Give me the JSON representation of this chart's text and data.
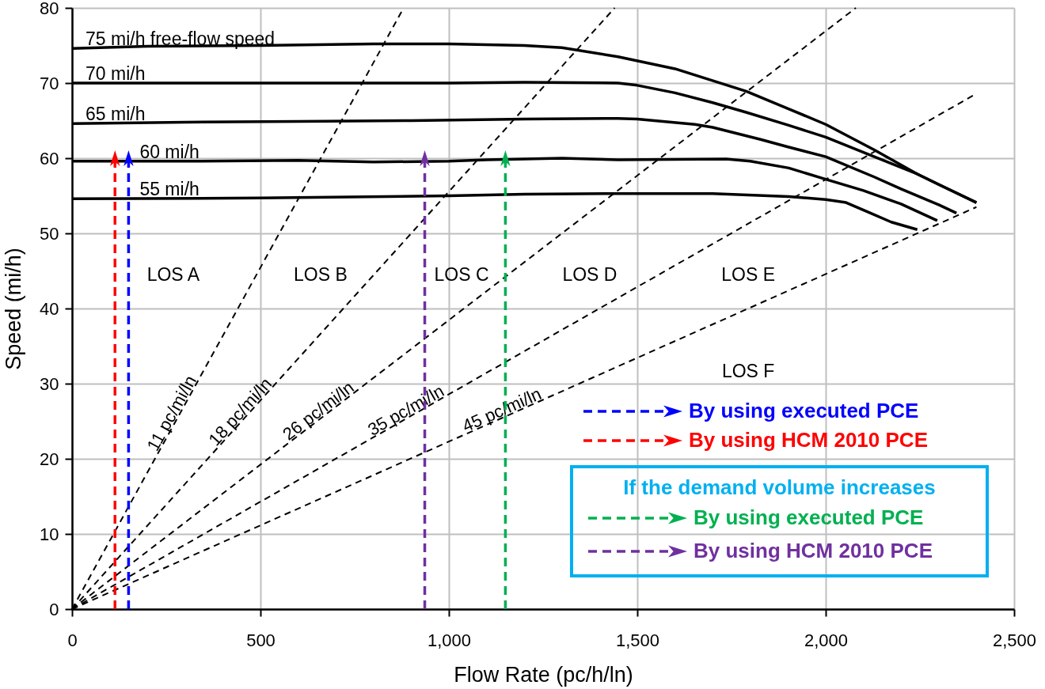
{
  "chart_data": {
    "type": "line",
    "xlabel": "Flow Rate (pc/h/ln)",
    "ylabel": "Speed (mi/h)",
    "xlim": [
      0,
      2500
    ],
    "ylim": [
      0,
      80
    ],
    "xticks": [
      0,
      500,
      {
        "value": 1000,
        "label": "1,000"
      },
      {
        "value": 1500,
        "label": "1,500"
      },
      {
        "value": 2000,
        "label": "2,000"
      },
      {
        "value": 2500,
        "label": "2,500"
      }
    ],
    "yticks": [
      0,
      10,
      20,
      30,
      40,
      50,
      60,
      70,
      80
    ],
    "grid": true,
    "legend": "bottom right",
    "legend_title": "If the demand volume increases",
    "series": [
      {
        "name": "75 mi/h free-flow speed",
        "color": "#000000",
        "line_style": "solid",
        "x": [
          0,
          200,
          500,
          800,
          1000,
          1200,
          1300,
          1449,
          1600,
          1789,
          1900,
          2000,
          2129,
          2243,
          2300,
          2400
        ],
        "values": [
          74.6,
          74.9,
          75.0,
          75.2,
          75.2,
          75.0,
          74.7,
          73.5,
          71.9,
          68.9,
          66.6,
          64.5,
          61.1,
          57.9,
          56.5,
          54.1
        ]
      },
      {
        "name": "70 mi/h",
        "color": "#000000",
        "line_style": "solid",
        "x": [
          0,
          500,
          1000,
          1200,
          1449,
          1500,
          1600,
          1700,
          1789,
          1900,
          2000,
          2129,
          2243,
          2300,
          2400
        ],
        "values": [
          70.0,
          70.0,
          70.0,
          70.1,
          70.0,
          69.7,
          68.7,
          67.4,
          66.1,
          64.4,
          62.8,
          60.2,
          57.9,
          56.5,
          54.1
        ]
      },
      {
        "name": "65 mi/h",
        "color": "#000000",
        "line_style": "solid",
        "x": [
          0,
          300,
          600,
          900,
          1200,
          1449,
          1500,
          1653,
          1700,
          1827,
          1900,
          2000,
          2129,
          2200,
          2300,
          2347
        ],
        "values": [
          64.6,
          64.8,
          64.9,
          65.0,
          65.2,
          65.3,
          65.2,
          64.5,
          64.1,
          62.5,
          61.5,
          60.2,
          57.5,
          55.9,
          53.8,
          52.7
        ]
      },
      {
        "name": "60 mi/h",
        "color": "#000000",
        "line_style": "solid",
        "x": [
          0,
          300,
          600,
          800,
          1000,
          1100,
          1300,
          1449,
          1736,
          1800,
          1902,
          2000,
          2100,
          2200,
          2296
        ],
        "values": [
          59.6,
          59.6,
          59.7,
          59.5,
          59.6,
          59.8,
          60.0,
          59.8,
          59.9,
          59.6,
          58.7,
          57.2,
          55.7,
          53.9,
          51.7
        ]
      },
      {
        "name": "55 mi/h",
        "color": "#000000",
        "line_style": "solid",
        "x": [
          0,
          500,
          1000,
          1200,
          1449,
          1700,
          1902,
          2000,
          2054,
          2114,
          2174,
          2243
        ],
        "values": [
          54.6,
          54.7,
          55.0,
          55.2,
          55.3,
          55.3,
          54.9,
          54.5,
          54.1,
          52.8,
          51.5,
          50.5
        ]
      },
      {
        "name": "11 pc/mi/ln",
        "color": "#000000",
        "line_style": "dashed",
        "x": [
          0,
          880
        ],
        "values": [
          0,
          80
        ]
      },
      {
        "name": "18 pc/mi/ln",
        "color": "#000000",
        "line_style": "dashed",
        "x": [
          0,
          1440
        ],
        "values": [
          0,
          80
        ]
      },
      {
        "name": "26 pc/mi/ln",
        "color": "#000000",
        "line_style": "dashed",
        "x": [
          0,
          2080
        ],
        "values": [
          0,
          80
        ]
      },
      {
        "name": "35 pc/mi/ln",
        "color": "#000000",
        "line_style": "dashed",
        "x": [
          0,
          2400
        ],
        "values": [
          0,
          68.6
        ]
      },
      {
        "name": "45 pc/mi/ln",
        "color": "#000000",
        "line_style": "dashed",
        "x": [
          0,
          2400
        ],
        "values": [
          0,
          53.5
        ]
      },
      {
        "name": "By using executed PCE",
        "color": "#0000ff",
        "line_style": "dashed",
        "x": [
          150,
          150
        ],
        "values": [
          0,
          60
        ]
      },
      {
        "name": "By using HCM 2010 PCE",
        "color": "#ff0000",
        "line_style": "dashed",
        "x": [
          114,
          114
        ],
        "values": [
          0,
          60
        ]
      },
      {
        "name": "By using executed PCE",
        "color": "#00b050",
        "line_style": "dashed",
        "x": [
          1150,
          1150
        ],
        "values": [
          0,
          60
        ]
      },
      {
        "name": "By using HCM 2010 PCE",
        "color": "#7030a0",
        "line_style": "dashed",
        "x": [
          936,
          936
        ],
        "values": [
          0,
          60
        ]
      }
    ],
    "annotations": [
      "LOS A",
      "LOS B",
      "LOS C",
      "LOS D",
      "LOS E",
      "LOS F"
    ]
  }
}
